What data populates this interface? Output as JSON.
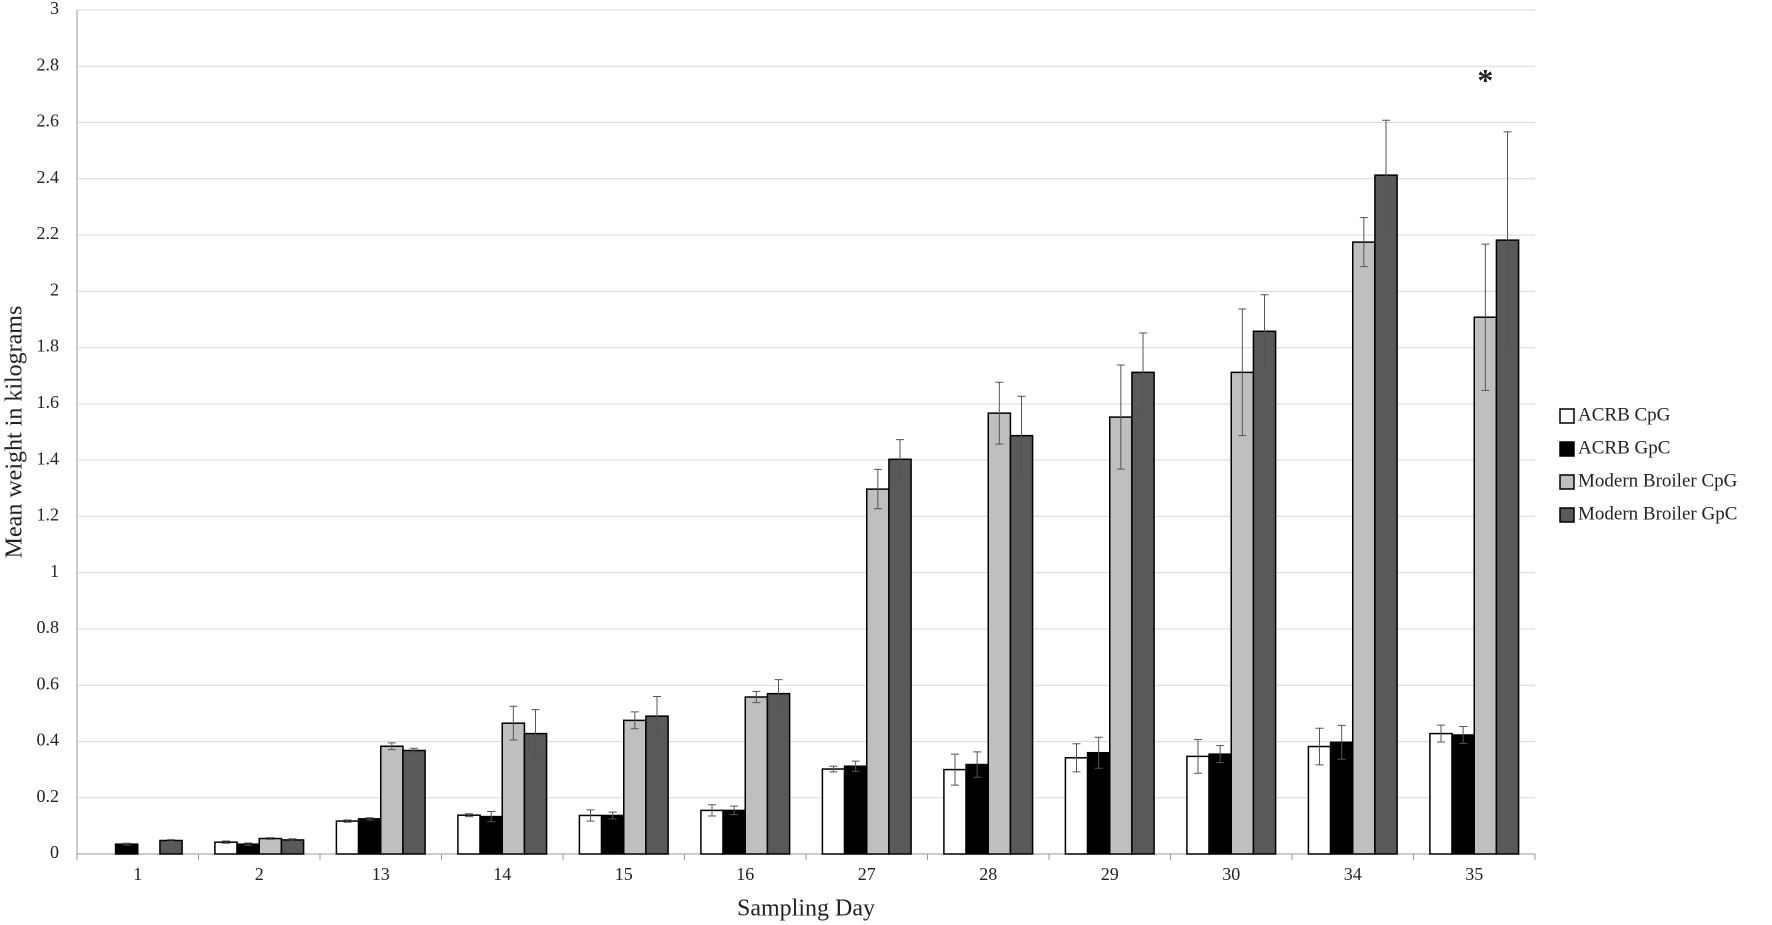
{
  "chart_data": {
    "type": "bar",
    "y_label": "Mean weight in kilograms",
    "x_label": "Sampling Day",
    "annotation": "*",
    "categories": [
      "1",
      "2",
      "13",
      "14",
      "15",
      "16",
      "27",
      "28",
      "29",
      "30",
      "34",
      "35"
    ],
    "series": [
      {
        "name": "ACRB CpG",
        "color": "#ffffff",
        "values": [
          null,
          0.042,
          0.117,
          0.138,
          0.137,
          0.155,
          0.302,
          0.3,
          0.342,
          0.347,
          0.382,
          0.428
        ],
        "errors": [
          null,
          0.004,
          0.004,
          0.005,
          0.02,
          0.02,
          0.01,
          0.055,
          0.05,
          0.06,
          0.065,
          0.03
        ]
      },
      {
        "name": "ACRB GpC",
        "color": "#000000",
        "values": [
          0.035,
          0.035,
          0.125,
          0.133,
          0.137,
          0.155,
          0.312,
          0.318,
          0.36,
          0.355,
          0.397,
          0.423
        ],
        "errors": [
          0.003,
          0.004,
          0.004,
          0.018,
          0.012,
          0.015,
          0.018,
          0.045,
          0.055,
          0.03,
          0.06,
          0.03
        ]
      },
      {
        "name": "Modern Broiler CpG",
        "color": "#bfbfbf",
        "values": [
          null,
          0.055,
          0.383,
          0.465,
          0.475,
          0.558,
          1.297,
          1.567,
          1.553,
          1.712,
          2.175,
          1.908
        ],
        "errors": [
          null,
          0.003,
          0.012,
          0.06,
          0.03,
          0.02,
          0.07,
          0.11,
          0.185,
          0.225,
          0.087,
          0.26
        ]
      },
      {
        "name": "Modern Broiler GpC",
        "color": "#595959",
        "values": [
          0.048,
          0.05,
          0.368,
          0.428,
          0.49,
          0.57,
          1.403,
          1.487,
          1.712,
          1.858,
          2.413,
          2.182
        ],
        "errors": [
          0.003,
          0.004,
          0.008,
          0.085,
          0.07,
          0.05,
          0.07,
          0.14,
          0.14,
          0.13,
          0.195,
          0.385
        ]
      }
    ],
    "ylim": [
      0,
      3
    ],
    "yticks": [
      0,
      0.2,
      0.4,
      0.6,
      0.8,
      1,
      1.2,
      1.4,
      1.6,
      1.8,
      2,
      2.2,
      2.4,
      2.6,
      2.8,
      3
    ],
    "grid": true,
    "legend": "right"
  }
}
